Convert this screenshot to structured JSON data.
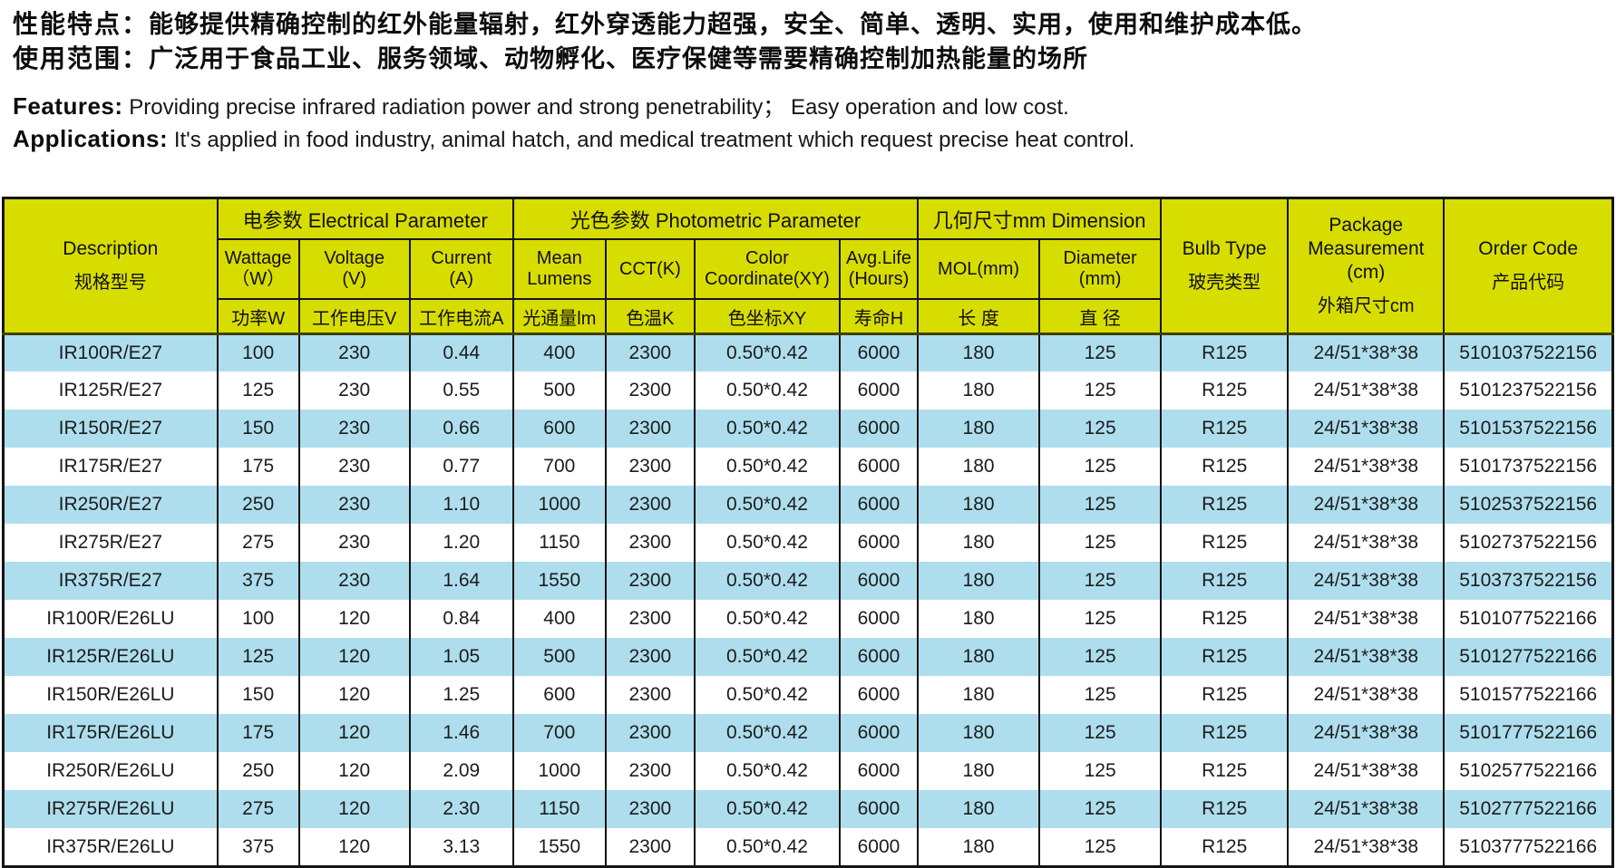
{
  "intro": {
    "line1_label": "性能特点：",
    "line1_text": "能够提供精确控制的红外能量辐射，红外穿透能力超强，安全、简单、透明、实用，使用和维护成本低。",
    "line2_label": "使用范围：",
    "line2_text": "广泛用于食品工业、服务领域、动物孵化、医疗保健等需要精确控制加热能量的场所",
    "line3_label": "Features:",
    "line3_text": "Providing precise infrared radiation power and strong penetrability； Easy operation and low cost.",
    "line4_label": "Applications:",
    "line4_text": "It's applied in food industry, animal hatch, and medical treatment which request precise heat control."
  },
  "table": {
    "header": {
      "description": {
        "en": "Description",
        "zh": "规格型号"
      },
      "groups": {
        "electrical": "电参数  Electrical Parameter",
        "photometric": "光色参数  Photometric Parameter",
        "dimension": "几何尺寸mm  Dimension"
      },
      "subcols": [
        {
          "en": "Wattage",
          "en2": "（W）",
          "zh": "功率W"
        },
        {
          "en": "Voltage",
          "en2": "(V)",
          "zh": "工作电压V"
        },
        {
          "en": "Current",
          "en2": "(A)",
          "zh": "工作电流A"
        },
        {
          "en": "Mean",
          "en2": "Lumens",
          "zh": "光通量lm"
        },
        {
          "en": "CCT(K)",
          "en2": "",
          "zh": "色温K"
        },
        {
          "en": "Color",
          "en2": "Coordinate(XY)",
          "zh": "色坐标XY"
        },
        {
          "en": "Avg.Life",
          "en2": "(Hours)",
          "zh": "寿命H"
        },
        {
          "en": "MOL(mm)",
          "en2": "",
          "zh": "长 度"
        },
        {
          "en": "Diameter",
          "en2": "(mm)",
          "zh": "直 径"
        }
      ],
      "bulb_type": {
        "en": "Bulb Type",
        "zh": "玻壳类型"
      },
      "package": {
        "en1": "Package",
        "en2": "Measurement",
        "en3": "(cm)",
        "zh": "外箱尺寸cm"
      },
      "order_code": {
        "en": "Order Code",
        "zh": "产品代码"
      }
    },
    "rows": [
      [
        "IR100R/E27",
        "100",
        "230",
        "0.44",
        "400",
        "2300",
        "0.50*0.42",
        "6000",
        "180",
        "125",
        "R125",
        "24/51*38*38",
        "5101037522156"
      ],
      [
        "IR125R/E27",
        "125",
        "230",
        "0.55",
        "500",
        "2300",
        "0.50*0.42",
        "6000",
        "180",
        "125",
        "R125",
        "24/51*38*38",
        "5101237522156"
      ],
      [
        "IR150R/E27",
        "150",
        "230",
        "0.66",
        "600",
        "2300",
        "0.50*0.42",
        "6000",
        "180",
        "125",
        "R125",
        "24/51*38*38",
        "5101537522156"
      ],
      [
        "IR175R/E27",
        "175",
        "230",
        "0.77",
        "700",
        "2300",
        "0.50*0.42",
        "6000",
        "180",
        "125",
        "R125",
        "24/51*38*38",
        "5101737522156"
      ],
      [
        "IR250R/E27",
        "250",
        "230",
        "1.10",
        "1000",
        "2300",
        "0.50*0.42",
        "6000",
        "180",
        "125",
        "R125",
        "24/51*38*38",
        "5102537522156"
      ],
      [
        "IR275R/E27",
        "275",
        "230",
        "1.20",
        "1150",
        "2300",
        "0.50*0.42",
        "6000",
        "180",
        "125",
        "R125",
        "24/51*38*38",
        "5102737522156"
      ],
      [
        "IR375R/E27",
        "375",
        "230",
        "1.64",
        "1550",
        "2300",
        "0.50*0.42",
        "6000",
        "180",
        "125",
        "R125",
        "24/51*38*38",
        "5103737522156"
      ],
      [
        "IR100R/E26LU",
        "100",
        "120",
        "0.84",
        "400",
        "2300",
        "0.50*0.42",
        "6000",
        "180",
        "125",
        "R125",
        "24/51*38*38",
        "5101077522166"
      ],
      [
        "IR125R/E26LU",
        "125",
        "120",
        "1.05",
        "500",
        "2300",
        "0.50*0.42",
        "6000",
        "180",
        "125",
        "R125",
        "24/51*38*38",
        "5101277522166"
      ],
      [
        "IR150R/E26LU",
        "150",
        "120",
        "1.25",
        "600",
        "2300",
        "0.50*0.42",
        "6000",
        "180",
        "125",
        "R125",
        "24/51*38*38",
        "5101577522166"
      ],
      [
        "IR175R/E26LU",
        "175",
        "120",
        "1.46",
        "700",
        "2300",
        "0.50*0.42",
        "6000",
        "180",
        "125",
        "R125",
        "24/51*38*38",
        "5101777522166"
      ],
      [
        "IR250R/E26LU",
        "250",
        "120",
        "2.09",
        "1000",
        "2300",
        "0.50*0.42",
        "6000",
        "180",
        "125",
        "R125",
        "24/51*38*38",
        "5102577522166"
      ],
      [
        "IR275R/E26LU",
        "275",
        "120",
        "2.30",
        "1150",
        "2300",
        "0.50*0.42",
        "6000",
        "180",
        "125",
        "R125",
        "24/51*38*38",
        "5102777522166"
      ],
      [
        "IR375R/E26LU",
        "375",
        "120",
        "3.13",
        "1550",
        "2300",
        "0.50*0.42",
        "6000",
        "180",
        "125",
        "R125",
        "24/51*38*38",
        "5103777522166"
      ]
    ]
  },
  "colors": {
    "header_bg": "#d8dd00",
    "row_blue": "#aedeed",
    "row_white": "#ffffff",
    "border": "#141414",
    "header_sep": "#3f4100"
  }
}
